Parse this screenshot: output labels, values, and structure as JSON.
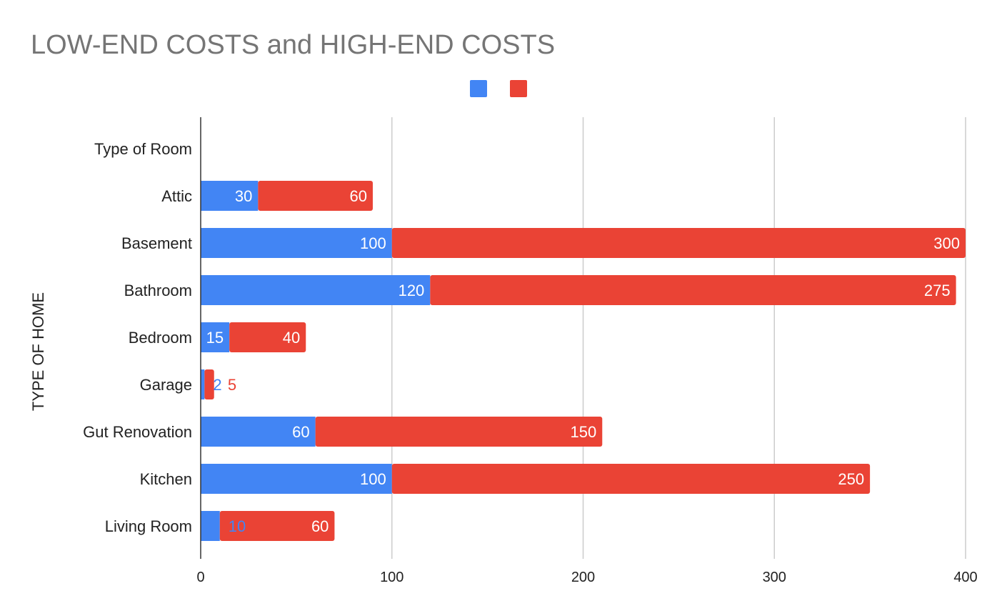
{
  "chart_data": {
    "type": "bar",
    "orientation": "horizontal",
    "stacked": true,
    "title": "LOW-END COSTS and HIGH-END COSTS",
    "ylabel": "TYPE OF HOME",
    "xlabel": "",
    "xlim": [
      0,
      400
    ],
    "xticks": [
      0,
      100,
      200,
      300,
      400
    ],
    "grid": true,
    "legend_position": "top",
    "categories": [
      "Type of Room",
      "Attic",
      "Basement",
      "Bathroom",
      "Bedroom",
      "Garage",
      "Gut Renovation",
      "Kitchen",
      "Living Room"
    ],
    "series": [
      {
        "name": "",
        "color": "#4285f4",
        "values": [
          null,
          30,
          100,
          120,
          15,
          2,
          60,
          100,
          10
        ]
      },
      {
        "name": "",
        "color": "#ea4335",
        "values": [
          null,
          60,
          300,
          275,
          40,
          5,
          150,
          250,
          60
        ]
      }
    ]
  }
}
